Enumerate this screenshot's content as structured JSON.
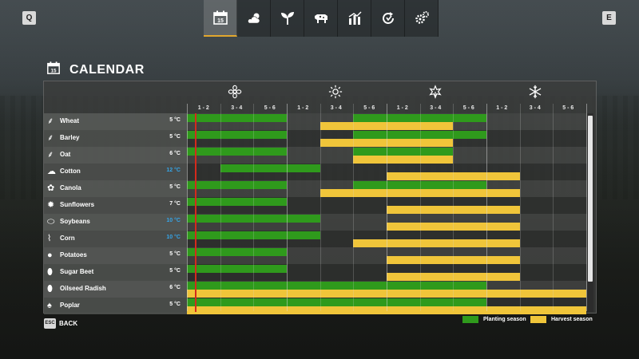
{
  "nav": {
    "prev_key": "Q",
    "next_key": "E",
    "tabs": [
      {
        "icon": "calendar-icon",
        "badge": "15",
        "active": true
      },
      {
        "icon": "weather-icon",
        "active": false
      },
      {
        "icon": "plant-icon",
        "active": false
      },
      {
        "icon": "cow-icon",
        "active": false
      },
      {
        "icon": "stats-chart-icon",
        "active": false
      },
      {
        "icon": "cycle-icon",
        "active": false
      },
      {
        "icon": "settings-icon",
        "active": false
      }
    ]
  },
  "page": {
    "title": "CALENDAR",
    "icon_badge": "15"
  },
  "calendar": {
    "seasons": [
      "spring-flower-icon",
      "summer-sun-icon",
      "autumn-leaf-icon",
      "winter-snowflake-icon"
    ],
    "months": [
      "1 - 2",
      "3 - 4",
      "5 - 6",
      "1 - 2",
      "3 - 4",
      "5 - 6",
      "1 - 2",
      "3 - 4",
      "5 - 6",
      "1 - 2",
      "3 - 4",
      "5 - 6"
    ],
    "today_position": 0.25,
    "crops": [
      {
        "name": "Wheat",
        "temp": "5 °C",
        "cold": false,
        "icon": "wheat-icon",
        "planting": [
          [
            0,
            3
          ],
          [
            5,
            9
          ]
        ],
        "harvest": [
          [
            4,
            8
          ]
        ]
      },
      {
        "name": "Barley",
        "temp": "5 °C",
        "cold": false,
        "icon": "barley-icon",
        "planting": [
          [
            0,
            3
          ],
          [
            5,
            9
          ]
        ],
        "harvest": [
          [
            4,
            8
          ]
        ]
      },
      {
        "name": "Oat",
        "temp": "6 °C",
        "cold": false,
        "icon": "oat-icon",
        "planting": [
          [
            0,
            3
          ],
          [
            5,
            8
          ]
        ],
        "harvest": [
          [
            5,
            8
          ]
        ]
      },
      {
        "name": "Cotton",
        "temp": "12 °C",
        "cold": true,
        "icon": "cotton-icon",
        "planting": [
          [
            1,
            4
          ]
        ],
        "harvest": [
          [
            6,
            10
          ]
        ]
      },
      {
        "name": "Canola",
        "temp": "5 °C",
        "cold": false,
        "icon": "canola-icon",
        "planting": [
          [
            0,
            3
          ],
          [
            5,
            9
          ]
        ],
        "harvest": [
          [
            4,
            10
          ]
        ]
      },
      {
        "name": "Sunflowers",
        "temp": "7 °C",
        "cold": false,
        "icon": "sunflower-icon",
        "planting": [
          [
            0,
            3
          ]
        ],
        "harvest": [
          [
            6,
            10
          ]
        ]
      },
      {
        "name": "Soybeans",
        "temp": "10 °C",
        "cold": true,
        "icon": "soybean-icon",
        "planting": [
          [
            0,
            4
          ]
        ],
        "harvest": [
          [
            6,
            10
          ]
        ]
      },
      {
        "name": "Corn",
        "temp": "10 °C",
        "cold": true,
        "icon": "corn-icon",
        "planting": [
          [
            0,
            4
          ]
        ],
        "harvest": [
          [
            5,
            10
          ]
        ]
      },
      {
        "name": "Potatoes",
        "temp": "5 °C",
        "cold": false,
        "icon": "potato-icon",
        "planting": [
          [
            0,
            3
          ]
        ],
        "harvest": [
          [
            6,
            10
          ]
        ]
      },
      {
        "name": "Sugar Beet",
        "temp": "5 °C",
        "cold": false,
        "icon": "sugarbeet-icon",
        "planting": [
          [
            0,
            3
          ]
        ],
        "harvest": [
          [
            6,
            10
          ]
        ]
      },
      {
        "name": "Oilseed Radish",
        "temp": "6 °C",
        "cold": false,
        "icon": "radish-icon",
        "planting": [
          [
            0,
            9
          ]
        ],
        "harvest": [
          [
            0,
            12
          ]
        ]
      },
      {
        "name": "Poplar",
        "temp": "5 °C",
        "cold": false,
        "icon": "poplar-icon",
        "planting": [
          [
            0,
            9
          ]
        ],
        "harvest": [
          [
            0,
            12
          ]
        ]
      }
    ]
  },
  "legend": {
    "planting_label": "Planting season",
    "harvest_label": "Harvest season",
    "planting_color": "#2f9a1c",
    "harvest_color": "#f0c53a"
  },
  "footer": {
    "back_key": "ESC",
    "back_label": "BACK"
  }
}
